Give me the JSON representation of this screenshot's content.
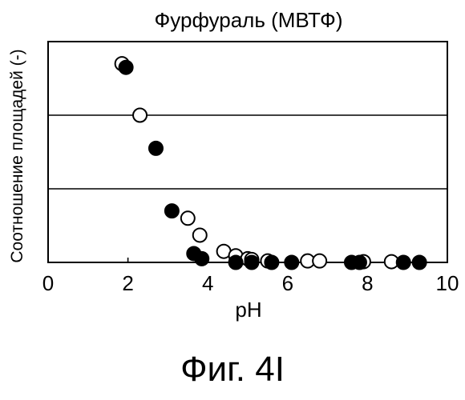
{
  "chart_data": {
    "type": "scatter",
    "title": "Фурфураль (МВТФ)",
    "xlabel": "pH",
    "ylabel": "Соотношение площадей (-)",
    "xlim": [
      0,
      10
    ],
    "xticks": [
      "0",
      "2",
      "4",
      "6",
      "8",
      "10"
    ],
    "ylim": [
      0,
      3
    ],
    "gridlines_y": [
      1,
      2
    ],
    "grid": "horizontal",
    "legend": "none",
    "series": [
      {
        "marker": "filled-circle",
        "color": "#000000",
        "x": [
          1.95,
          2.7,
          3.1,
          3.65,
          3.85,
          4.7,
          5.1,
          5.6,
          6.1,
          7.6,
          7.8,
          8.9,
          9.3
        ],
        "y": [
          2.65,
          1.55,
          0.7,
          0.12,
          0.05,
          0.0,
          0.0,
          0.0,
          0.0,
          0.0,
          0.0,
          0.0,
          0.0
        ]
      },
      {
        "marker": "open-circle",
        "color": "#000000",
        "x": [
          1.85,
          2.3,
          3.5,
          3.8,
          4.4,
          4.7,
          5.0,
          5.1,
          5.5,
          6.5,
          6.8,
          7.9,
          8.6
        ],
        "y": [
          2.7,
          2.0,
          0.6,
          0.37,
          0.15,
          0.09,
          0.05,
          0.04,
          0.02,
          0.02,
          0.02,
          0.01,
          0.01
        ]
      }
    ]
  },
  "figure": {
    "caption": "Фиг. 4I"
  }
}
